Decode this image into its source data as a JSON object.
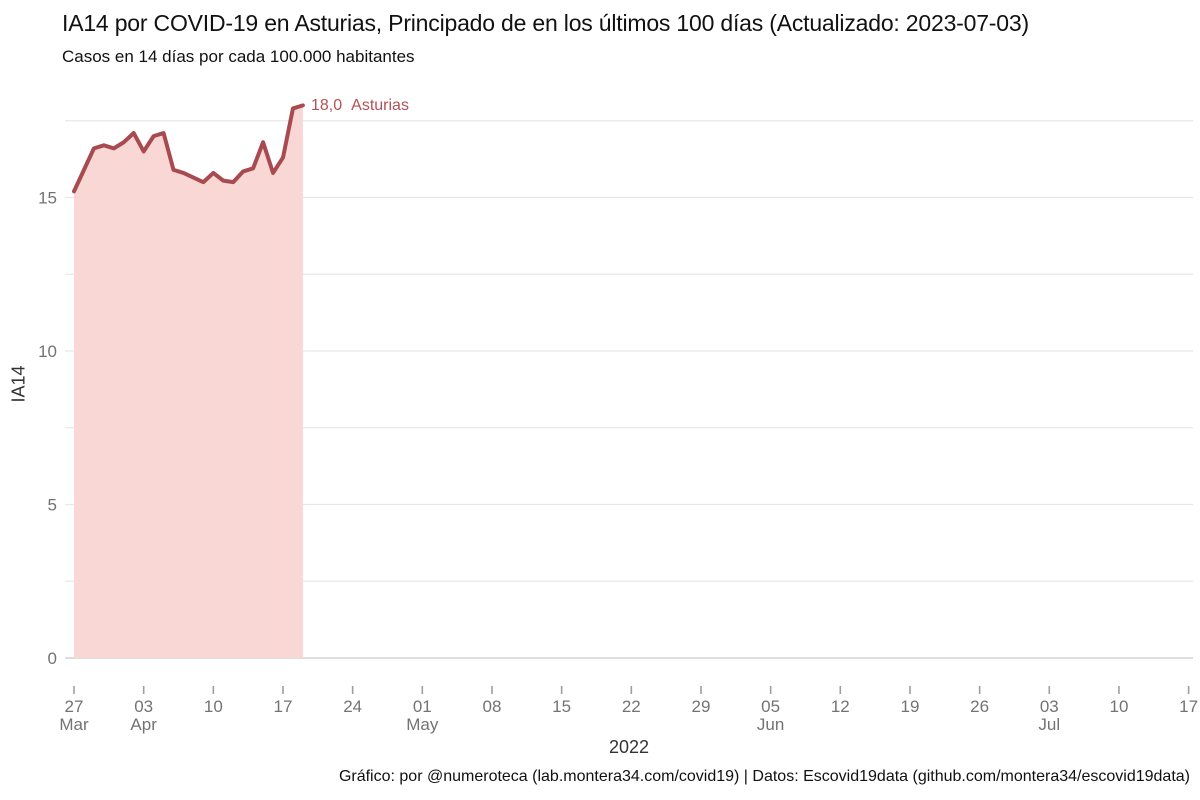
{
  "chart_data": {
    "type": "area",
    "title": "IA14 por COVID-19 en Asturias, Principado de en los últimos 100 días (Actualizado: 2023-07-03)",
    "subtitle": "Casos en 14 días por cada 100.000 habitantes",
    "xlabel": "2022",
    "ylabel": "IA14",
    "ylim": [
      0,
      18.3
    ],
    "grid": true,
    "grid_values": [
      0,
      2.5,
      5,
      7.5,
      10,
      12.5,
      15,
      17.5
    ],
    "y_ticks": [
      0,
      5,
      10,
      15
    ],
    "x_ticks": [
      {
        "label": "27",
        "month": "Mar",
        "offset": 0
      },
      {
        "label": "03",
        "month": "Apr",
        "offset": 7
      },
      {
        "label": "10",
        "offset": 14
      },
      {
        "label": "17",
        "offset": 21
      },
      {
        "label": "24",
        "offset": 28
      },
      {
        "label": "01",
        "month": "May",
        "offset": 35
      },
      {
        "label": "08",
        "offset": 42
      },
      {
        "label": "15",
        "offset": 49
      },
      {
        "label": "22",
        "offset": 56
      },
      {
        "label": "29",
        "offset": 63
      },
      {
        "label": "05",
        "month": "Jun",
        "offset": 70
      },
      {
        "label": "12",
        "offset": 77
      },
      {
        "label": "19",
        "offset": 84
      },
      {
        "label": "26",
        "offset": 91
      },
      {
        "label": "03",
        "month": "Jul",
        "offset": 98
      },
      {
        "label": "10",
        "offset": 105
      },
      {
        "label": "17",
        "offset": 112
      }
    ],
    "legend_position": "end-of-line",
    "series": [
      {
        "name": "Asturias",
        "end_label": "18,0",
        "dates": [
          "2022-03-27",
          "2022-03-28",
          "2022-03-29",
          "2022-03-30",
          "2022-03-31",
          "2022-04-01",
          "2022-04-02",
          "2022-04-03",
          "2022-04-04",
          "2022-04-05",
          "2022-04-06",
          "2022-04-07",
          "2022-04-08",
          "2022-04-09",
          "2022-04-10",
          "2022-04-11",
          "2022-04-12",
          "2022-04-13",
          "2022-04-14",
          "2022-04-15",
          "2022-04-16",
          "2022-04-17",
          "2022-04-18",
          "2022-04-19"
        ],
        "values": [
          15.2,
          15.9,
          16.6,
          16.7,
          16.6,
          16.8,
          17.1,
          16.5,
          17.0,
          17.1,
          15.9,
          15.8,
          15.65,
          15.5,
          15.8,
          15.55,
          15.5,
          15.85,
          15.95,
          16.8,
          15.8,
          16.3,
          17.9,
          18.0
        ]
      }
    ]
  },
  "footer": {
    "caption": "Gráfico: por @numeroteca (lab.montera34.com/covid19) | Datos: Escovid19data (github.com/montera34/escovid19data)"
  },
  "colors": {
    "line": "#a84b50",
    "fill": "#f9d7d5",
    "label": "#b25156",
    "grid": "#e8e8e8",
    "axis": "#d2d2d2",
    "tick": "#9e9e9e",
    "tick_text": "#737373"
  }
}
